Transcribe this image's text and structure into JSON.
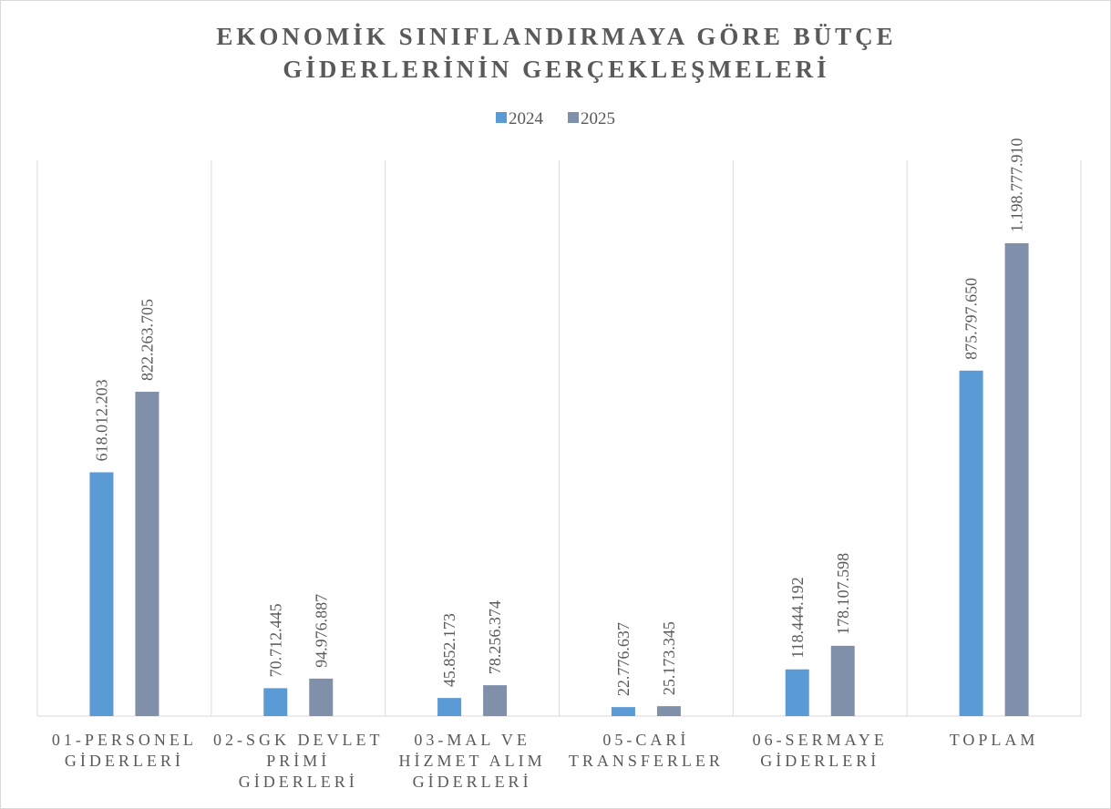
{
  "chart_data": {
    "type": "bar",
    "title": [
      "EKONOMİK SINIFLANDIRMAYA GÖRE BÜTÇE",
      "GİDERLERİNİN GERÇEKLEŞMELERİ"
    ],
    "categories": [
      "01-PERSONEL GİDERLERİ",
      "02-SGK DEVLET PRİMİ GİDERLERİ",
      "03-MAL VE HİZMET ALIM GİDERLERİ",
      "05-CARİ TRANSFERLER",
      "06-SERMAYE GİDERLERİ",
      "TOPLAM"
    ],
    "series": [
      {
        "name": "2024",
        "color": "#5b9bd5",
        "values": [
          618012203,
          70712445,
          45852173,
          22776637,
          118444192,
          875797650
        ],
        "value_labels": [
          "618.012.203",
          "70.712.445",
          "45.852.173",
          "22.776.637",
          "118.444.192",
          "875.797.650"
        ]
      },
      {
        "name": "2025",
        "color": "#8190aa",
        "values": [
          822263705,
          94976887,
          78256374,
          25173345,
          178107598,
          1198777910
        ],
        "value_labels": [
          "822.263.705",
          "94.976.887",
          "78.256.374",
          "25.173.345",
          "178.107.598",
          "1.198.777.910"
        ]
      }
    ],
    "legend": "top",
    "grid": true
  }
}
